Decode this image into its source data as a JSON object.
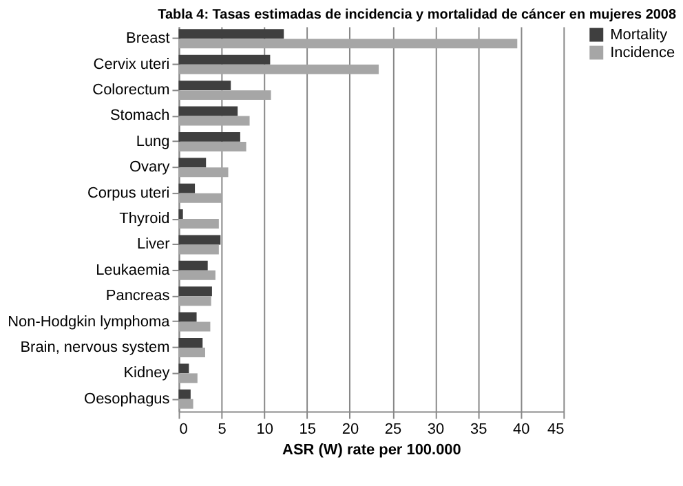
{
  "chart_data": {
    "type": "bar",
    "orientation": "horizontal",
    "title": "Tabla 4: Tasas estimadas de incidencia y mortalidad de cáncer en mujeres 2008",
    "xlabel": "ASR (W) rate per 100.000",
    "categories": [
      "Breast",
      "Cervix uteri",
      "Colorectum",
      "Stomach",
      "Lung",
      "Ovary",
      "Corpus uteri",
      "Thyroid",
      "Liver",
      "Leukaemia",
      "Pancreas",
      "Non-Hodgkin lymphoma",
      "Brain, nervous system",
      "Kidney",
      "Oesophagus"
    ],
    "series": [
      {
        "name": "Mortality",
        "color": "#3f3f3f",
        "values": [
          12.3,
          10.7,
          6.1,
          6.9,
          7.2,
          3.2,
          1.9,
          0.5,
          4.9,
          3.4,
          3.9,
          2.1,
          2.8,
          1.2,
          1.4
        ]
      },
      {
        "name": "Incidence",
        "color": "#a6a6a6",
        "values": [
          39.6,
          23.4,
          10.8,
          8.3,
          7.9,
          5.8,
          5.0,
          4.7,
          4.7,
          4.3,
          3.8,
          3.7,
          3.1,
          2.2,
          1.7
        ]
      }
    ],
    "xlim": [
      0,
      45
    ],
    "xticks": [
      0,
      5,
      10,
      15,
      20,
      25,
      30,
      35,
      40,
      45
    ],
    "grid": "x",
    "legend": "right"
  }
}
